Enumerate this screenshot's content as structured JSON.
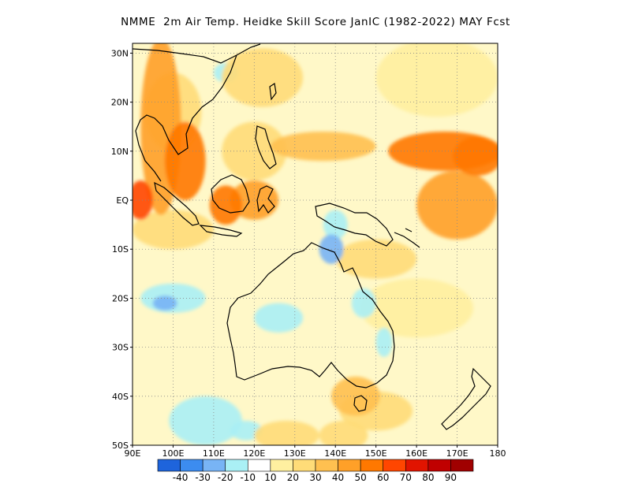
{
  "title": "NMME  2m Air Temp. Heidke Skill Score JanIC (1982-2022) MAY Fcst",
  "map": {
    "lon_range": [
      90,
      180
    ],
    "lat_range": [
      -50,
      32
    ],
    "lon_ticks": [
      {
        "value": 90,
        "label": "90E"
      },
      {
        "value": 100,
        "label": "100E"
      },
      {
        "value": 110,
        "label": "110E"
      },
      {
        "value": 120,
        "label": "120E"
      },
      {
        "value": 130,
        "label": "130E"
      },
      {
        "value": 140,
        "label": "140E"
      },
      {
        "value": 150,
        "label": "150E"
      },
      {
        "value": 160,
        "label": "160E"
      },
      {
        "value": 170,
        "label": "170E"
      },
      {
        "value": 180,
        "label": "180"
      }
    ],
    "lat_ticks": [
      {
        "value": 30,
        "label": "30N"
      },
      {
        "value": 20,
        "label": "20N"
      },
      {
        "value": 10,
        "label": "10N"
      },
      {
        "value": 0,
        "label": "EQ"
      },
      {
        "value": -10,
        "label": "10S"
      },
      {
        "value": -20,
        "label": "20S"
      },
      {
        "value": -30,
        "label": "30S"
      },
      {
        "value": -40,
        "label": "40S"
      },
      {
        "value": -50,
        "label": "50S"
      }
    ]
  },
  "colorbar": {
    "colors": [
      "#1e64dc",
      "#3c8cf0",
      "#78b4f5",
      "#aaf0f5",
      "#ffffff",
      "#fff0a0",
      "#ffdc78",
      "#ffc050",
      "#ffa028",
      "#ff7800",
      "#ff4600",
      "#e11400",
      "#c00000",
      "#a00000"
    ],
    "labels": [
      "-40",
      "-30",
      "-20",
      "-10",
      "10",
      "20",
      "30",
      "40",
      "50",
      "60",
      "70",
      "80",
      "90"
    ]
  },
  "chart_data": {
    "type": "heatmap",
    "title": "NMME  2m Air Temp. Heidke Skill Score JanIC (1982-2022) MAY Fcst",
    "x": [
      90,
      100,
      110,
      120,
      130,
      140,
      150,
      160,
      170,
      180
    ],
    "y": [
      30,
      20,
      10,
      0,
      -10,
      -20,
      -30,
      -40,
      -50
    ],
    "xlim": [
      90,
      180
    ],
    "ylim": [
      -50,
      32
    ],
    "levels": [
      -40,
      -30,
      -20,
      -10,
      10,
      20,
      30,
      40,
      50,
      60,
      70,
      80,
      90
    ],
    "blobs": [
      {
        "lon": 97,
        "lat": 15,
        "rx": 5,
        "ry": 18,
        "value": 40
      },
      {
        "lon": 103,
        "lat": 8,
        "rx": 5,
        "ry": 8,
        "value": 50
      },
      {
        "lon": 92,
        "lat": 0,
        "rx": 3,
        "ry": 4,
        "value": 60
      },
      {
        "lon": 100,
        "lat": 18,
        "rx": 7,
        "ry": 8,
        "value": 25
      },
      {
        "lon": 113,
        "lat": -1,
        "rx": 4,
        "ry": 4,
        "value": 50
      },
      {
        "lon": 120,
        "lat": 0,
        "rx": 6,
        "ry": 4,
        "value": 40
      },
      {
        "lon": 137,
        "lat": 11,
        "rx": 13,
        "ry": 3,
        "value": 35
      },
      {
        "lon": 167,
        "lat": 10,
        "rx": 14,
        "ry": 4,
        "value": 50
      },
      {
        "lon": 175,
        "lat": 9,
        "rx": 6,
        "ry": 4,
        "value": 55
      },
      {
        "lon": 170,
        "lat": -1,
        "rx": 10,
        "ry": 7,
        "value": 40
      },
      {
        "lon": 150,
        "lat": -12,
        "rx": 10,
        "ry": 4,
        "value": 25
      },
      {
        "lon": 122,
        "lat": 25,
        "rx": 10,
        "ry": 6,
        "value": 25
      },
      {
        "lon": 165,
        "lat": 25,
        "rx": 15,
        "ry": 8,
        "value": 18
      },
      {
        "lon": 160,
        "lat": -22,
        "rx": 14,
        "ry": 6,
        "value": 15
      },
      {
        "lon": 145,
        "lat": -40,
        "rx": 6,
        "ry": 4,
        "value": 35
      },
      {
        "lon": 150,
        "lat": -43,
        "rx": 9,
        "ry": 4,
        "value": 28
      },
      {
        "lon": 128,
        "lat": -48,
        "rx": 8,
        "ry": 3,
        "value": 20
      },
      {
        "lon": 142,
        "lat": -48,
        "rx": 6,
        "ry": 3,
        "value": 25
      },
      {
        "lon": 100,
        "lat": -6,
        "rx": 10,
        "ry": 4,
        "value": 22
      },
      {
        "lon": 120,
        "lat": 10,
        "rx": 8,
        "ry": 6,
        "value": 22
      },
      {
        "lon": 140,
        "lat": -5,
        "rx": 3,
        "ry": 3,
        "value": -20
      },
      {
        "lon": 139,
        "lat": -10,
        "rx": 3,
        "ry": 3,
        "value": -30
      },
      {
        "lon": 147,
        "lat": -21,
        "rx": 3,
        "ry": 3,
        "value": -15
      },
      {
        "lon": 100,
        "lat": -20,
        "rx": 8,
        "ry": 3,
        "value": -15
      },
      {
        "lon": 98,
        "lat": -21,
        "rx": 3,
        "ry": 1.5,
        "value": -25
      },
      {
        "lon": 108,
        "lat": -45,
        "rx": 9,
        "ry": 5,
        "value": -15
      },
      {
        "lon": 118,
        "lat": -47,
        "rx": 4,
        "ry": 2,
        "value": -12
      },
      {
        "lon": 113,
        "lat": 26,
        "rx": 3,
        "ry": 2,
        "value": -12
      },
      {
        "lon": 152,
        "lat": -29,
        "rx": 2,
        "ry": 3,
        "value": -18
      },
      {
        "lon": 126,
        "lat": -24,
        "rx": 6,
        "ry": 3,
        "value": -12
      }
    ]
  }
}
